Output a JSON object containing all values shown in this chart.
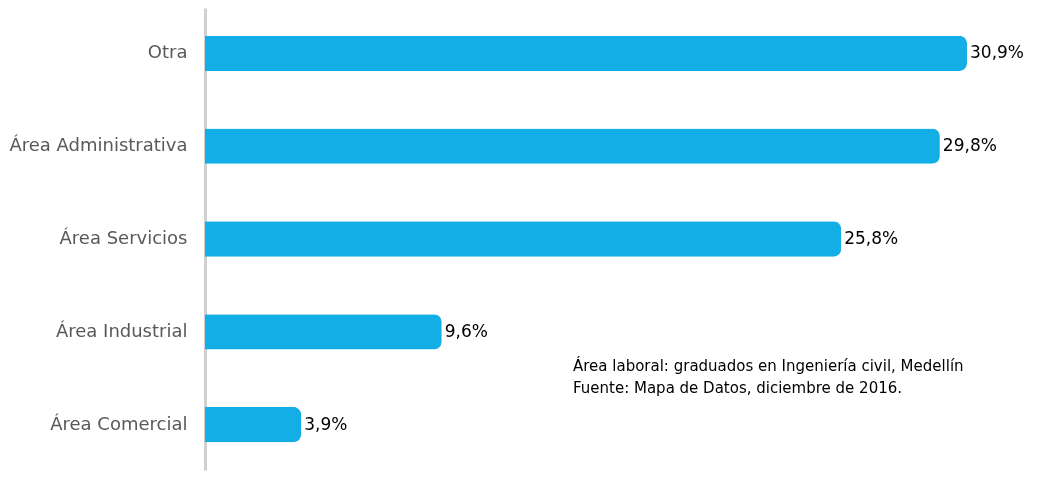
{
  "chart_data": {
    "type": "bar",
    "orientation": "horizontal",
    "categories": [
      "Otra",
      "Área Administrativa",
      "Área Servicios",
      "Área Industrial",
      "Área Comercial"
    ],
    "values": [
      30.9,
      29.8,
      25.8,
      9.6,
      3.9
    ],
    "value_labels": [
      "30,9%",
      "29,8%",
      "25,8%",
      "9,6%",
      "3,9%"
    ],
    "color": "#13aee6",
    "annotations": [
      "Área laboral: graduados en Ingeniería civil,  Medellín",
      "Fuente: Mapa de Datos, diciembre de 2016."
    ]
  }
}
